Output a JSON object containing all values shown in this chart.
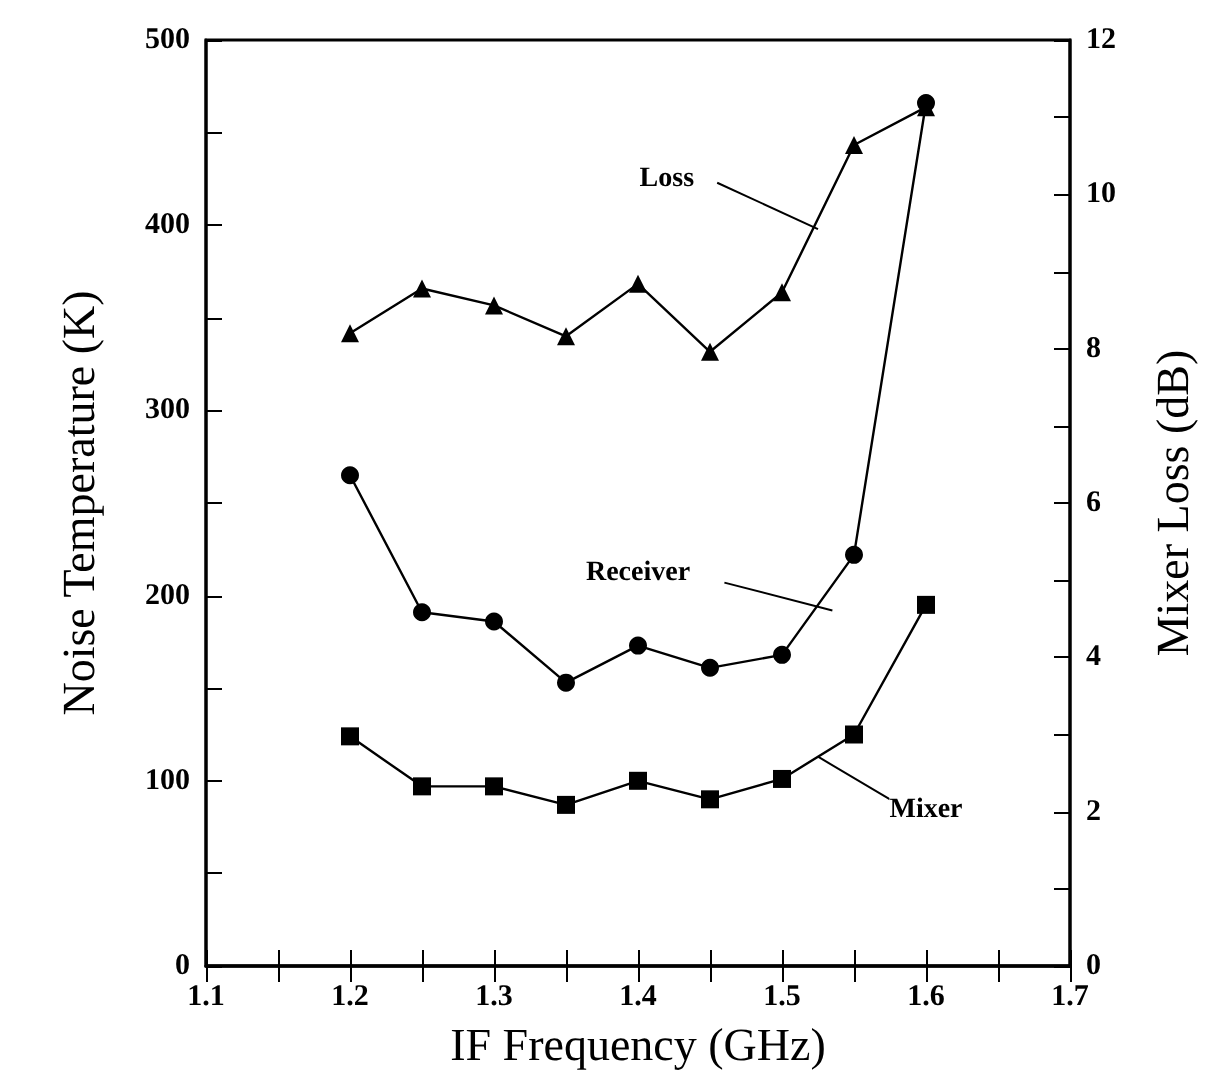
{
  "chart_data": {
    "type": "line",
    "xlabel": "IF Frequency (GHz)",
    "ylabel": "Noise Temperature (K)",
    "y2label": "Mixer Loss (dB)",
    "x": [
      1.2,
      1.25,
      1.3,
      1.35,
      1.4,
      1.45,
      1.5,
      1.55,
      1.6
    ],
    "series": [
      {
        "name": "Loss",
        "color": "#000000",
        "marker": "triangle",
        "axis": "y2",
        "values": [
          8.2,
          8.78,
          8.56,
          8.16,
          8.84,
          7.96,
          8.73,
          10.64,
          11.13
        ]
      },
      {
        "name": "Receiver",
        "color": "#000000",
        "marker": "circle",
        "values": [
          265,
          191,
          186,
          153,
          173,
          161,
          168,
          222,
          466
        ]
      },
      {
        "name": "Mixer",
        "color": "#000000",
        "marker": "square",
        "values": [
          124,
          97,
          97,
          87,
          100,
          90,
          101,
          125,
          195
        ]
      }
    ],
    "xlim": [
      1.1,
      1.7
    ],
    "xticks": [
      1.1,
      1.2,
      1.3,
      1.4,
      1.5,
      1.6,
      1.7
    ],
    "ylim": [
      0,
      500
    ],
    "yticks": [
      0,
      100,
      200,
      300,
      400,
      500
    ],
    "y2lim": [
      0,
      12
    ],
    "y2ticks": [
      0,
      2,
      4,
      6,
      8,
      10,
      12
    ],
    "grid": false,
    "legend": false,
    "line_style": "solid"
  }
}
